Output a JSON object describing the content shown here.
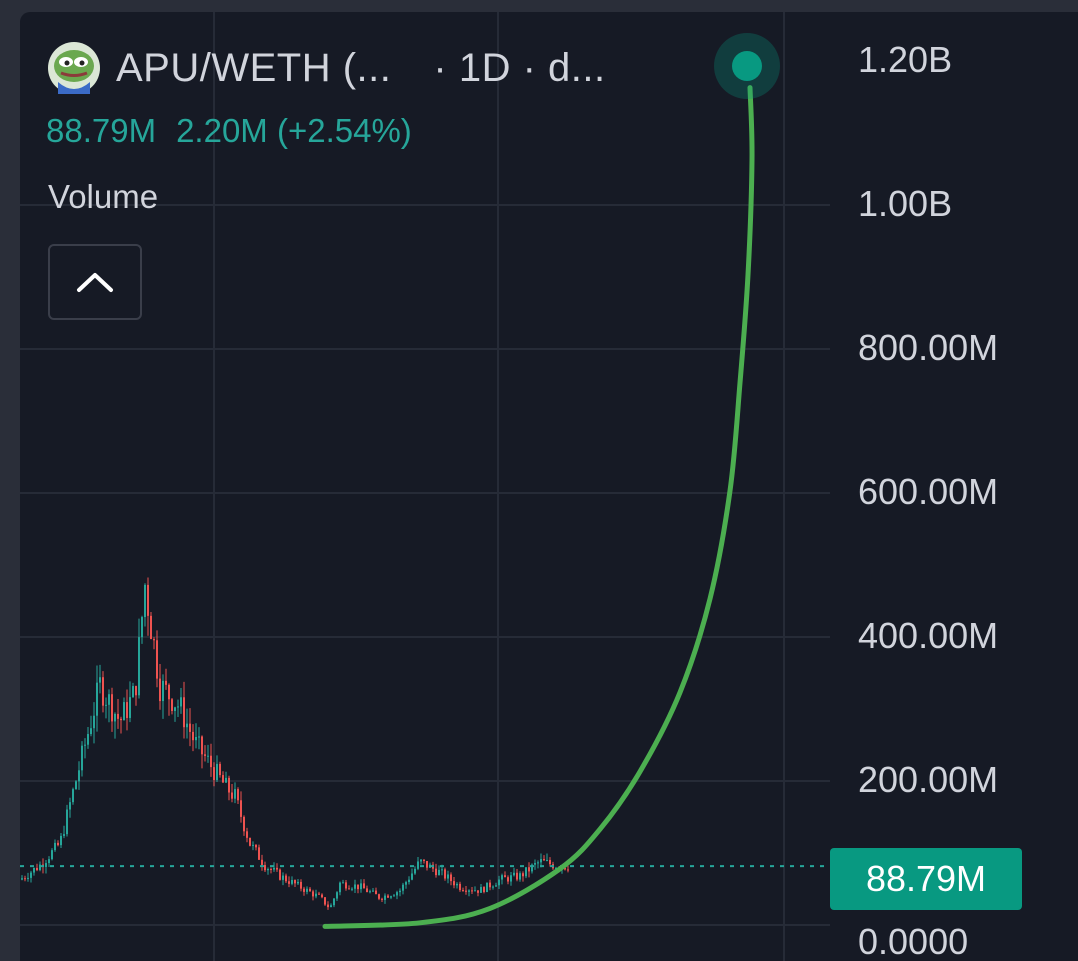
{
  "legend": {
    "pair": "APU/WETH (...",
    "interval": "· 1D · d...",
    "last_value": "88.79M",
    "change": "2.20M (+2.54%)",
    "indicator": "Volume"
  },
  "price_badge": "88.79M",
  "y_axis_labels": [
    "1.20B",
    "1.00B",
    "800.00M",
    "600.00M",
    "400.00M",
    "200.00M",
    "0.0000"
  ],
  "colors": {
    "background": "#161a25",
    "up": "#26a69a",
    "down": "#ef5350",
    "projection": "#4caf50",
    "text": "#d1d4dc",
    "badge": "#089981"
  },
  "icons": {
    "logo": "pepe-frog-icon",
    "collapse": "chevron-up-icon"
  },
  "chart_data": {
    "type": "line",
    "y_unit": "market cap (USD)",
    "ylim": [
      0,
      1250000000
    ],
    "yticks": [
      0,
      200000000,
      400000000,
      600000000,
      800000000,
      1000000000,
      1200000000
    ],
    "y_tick_labels": [
      "0.0000",
      "200.00M",
      "400.00M",
      "600.00M",
      "800.00M",
      "1.00B",
      "1.20B"
    ],
    "current_value": 88790000,
    "series": [
      {
        "type": "candlestick",
        "approx_close": [
          [
            0,
            70000000
          ],
          [
            20,
            90000000
          ],
          [
            40,
            120000000
          ],
          [
            60,
            230000000
          ],
          [
            80,
            340000000
          ],
          [
            100,
            290000000
          ],
          [
            115,
            330000000
          ],
          [
            125,
            480000000
          ],
          [
            140,
            340000000
          ],
          [
            160,
            310000000
          ],
          [
            175,
            260000000
          ],
          [
            190,
            230000000
          ],
          [
            205,
            200000000
          ],
          [
            215,
            185000000
          ],
          [
            230,
            120000000
          ],
          [
            245,
            90000000
          ],
          [
            260,
            75000000
          ],
          [
            280,
            60000000
          ],
          [
            300,
            45000000
          ],
          [
            310,
            30000000
          ],
          [
            320,
            65000000
          ],
          [
            340,
            60000000
          ],
          [
            360,
            45000000
          ],
          [
            380,
            55000000
          ],
          [
            400,
            95000000
          ],
          [
            420,
            80000000
          ],
          [
            440,
            60000000
          ],
          [
            460,
            55000000
          ],
          [
            480,
            70000000
          ],
          [
            500,
            75000000
          ],
          [
            520,
            95000000
          ],
          [
            540,
            88790000
          ]
        ]
      },
      {
        "type": "projection",
        "approx_points": [
          [
            305,
            5000000
          ],
          [
            400,
            10000000
          ],
          [
            470,
            30000000
          ],
          [
            540,
            85000000
          ],
          [
            580,
            140000000
          ],
          [
            620,
            220000000
          ],
          [
            660,
            330000000
          ],
          [
            690,
            460000000
          ],
          [
            710,
            610000000
          ],
          [
            720,
            760000000
          ],
          [
            728,
            910000000
          ],
          [
            732,
            1070000000
          ],
          [
            730,
            1170000000
          ]
        ]
      }
    ]
  }
}
